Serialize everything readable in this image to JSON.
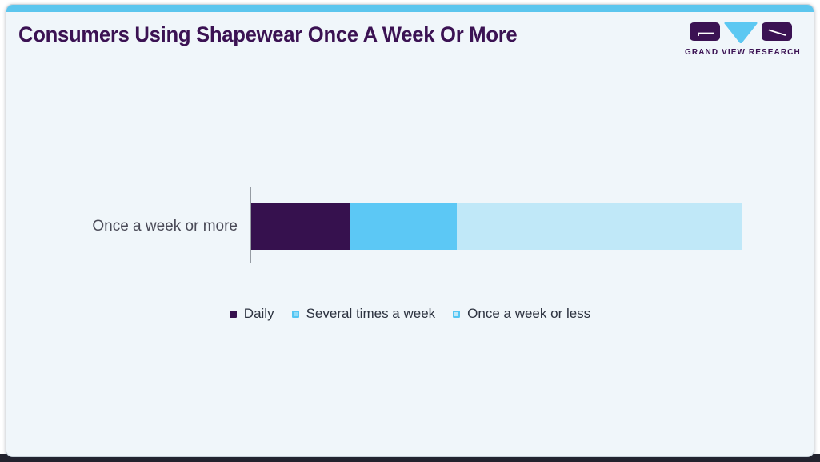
{
  "page": {
    "outer_background": "#ffffff",
    "bottom_strip_color": "#23232e",
    "card_background": "#f0f6fa",
    "card_border_color": "#c9d3da",
    "accent_bar_color": "#5cc6ee"
  },
  "header": {
    "title": "Consumers Using Shapewear Once A Week Or More",
    "title_color": "#3b1253"
  },
  "logo": {
    "text": "GRAND VIEW RESEARCH",
    "purple": "#3b1253",
    "cyan": "#5cc8f2"
  },
  "chart_data": {
    "type": "bar",
    "orientation": "horizontal",
    "stacked": true,
    "title": "Consumers Using Shapewear Once A Week Or More",
    "categories": [
      "Once a week or more"
    ],
    "series": [
      {
        "name": "Daily",
        "values": [
          20
        ],
        "color": "#36114e",
        "legend_fill": "#36114e",
        "legend_border": "#36114e"
      },
      {
        "name": "Several times a week",
        "values": [
          22
        ],
        "color": "#5cc8f5",
        "legend_fill": "#8edbf8",
        "legend_border": "#54c6f3"
      },
      {
        "name": "Once a week or less",
        "values": [
          58
        ],
        "color": "#c0e8f8",
        "legend_fill": "#c0e8f8",
        "legend_border": "#54c6f3"
      }
    ],
    "xlim": [
      0,
      100
    ],
    "grid": false,
    "value_labels": false,
    "legend_position": "bottom",
    "axis_line_color": "#969ca3",
    "category_label_color": "#4a4a57",
    "legend_text_color": "#2d3340"
  }
}
